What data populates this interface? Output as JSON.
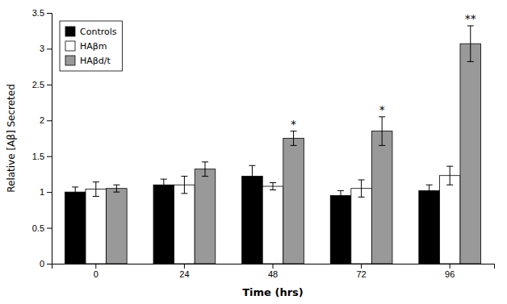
{
  "chart_data": {
    "type": "bar",
    "categories": [
      "0",
      "24",
      "48",
      "72",
      "96"
    ],
    "series": [
      {
        "name": "Controls",
        "color": "#000000",
        "values": [
          1.0,
          1.1,
          1.22,
          0.95,
          1.02
        ],
        "errors": [
          0.07,
          0.08,
          0.15,
          0.07,
          0.08
        ]
      },
      {
        "name": "HAβm",
        "color": "#ffffff",
        "values": [
          1.04,
          1.1,
          1.08,
          1.05,
          1.23
        ],
        "errors": [
          0.1,
          0.12,
          0.05,
          0.12,
          0.13
        ]
      },
      {
        "name": "HAβd/t",
        "color": "#999999",
        "values": [
          1.05,
          1.32,
          1.75,
          1.85,
          3.07
        ],
        "errors": [
          0.05,
          0.1,
          0.1,
          0.2,
          0.25
        ],
        "significance": [
          null,
          null,
          "*",
          "*",
          "**"
        ]
      }
    ],
    "xlabel": "Time (hrs)",
    "ylabel": "Relative [Aβ] Secreted",
    "ylim": [
      0,
      3.5
    ],
    "yticks": [
      0,
      0.5,
      1,
      1.5,
      2,
      2.5,
      3,
      3.5
    ],
    "grid": false,
    "legend": "upper left"
  }
}
